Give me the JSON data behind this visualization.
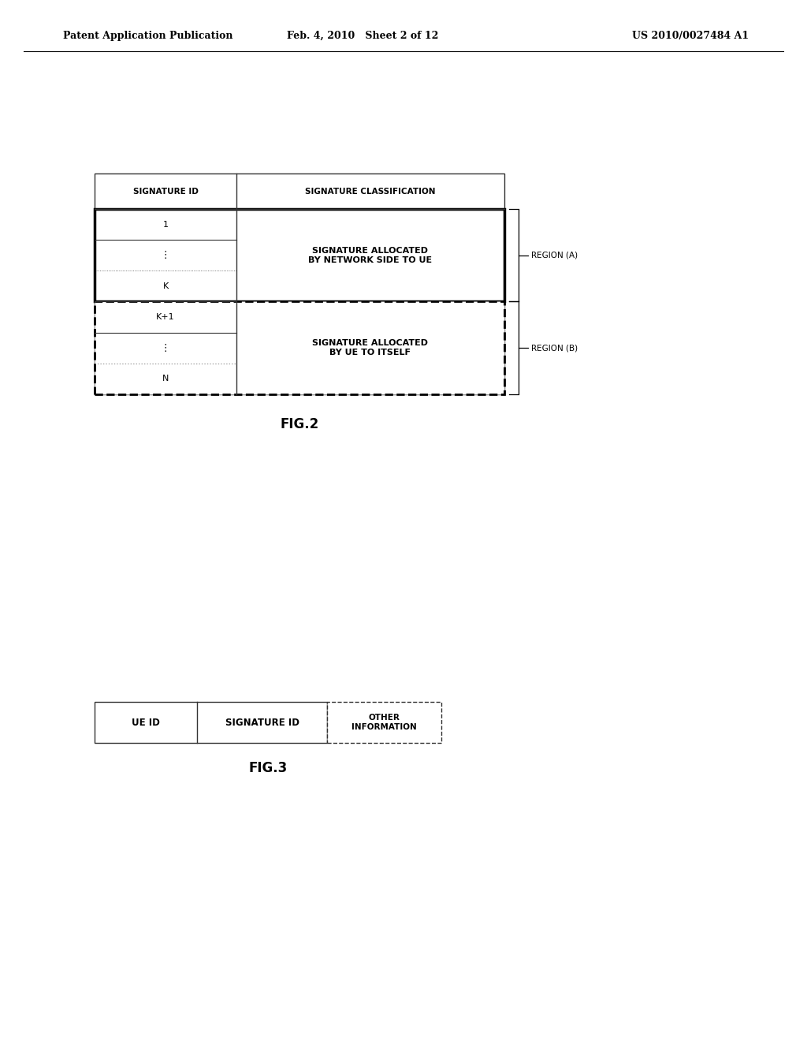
{
  "bg_color": "#ffffff",
  "header_text": {
    "left": "Patent Application Publication",
    "center": "Feb. 4, 2010   Sheet 2 of 12",
    "right": "US 2010/0027484 A1"
  },
  "fig2": {
    "title": "FIG.2",
    "header_label_left": "SIGNATURE ID",
    "header_label_right": "SIGNATURE CLASSIFICATION",
    "rows_a": [
      "1",
      "⋮",
      "K"
    ],
    "rows_b": [
      "K+1",
      "⋮",
      "N"
    ],
    "text_a": "SIGNATURE ALLOCATED\nBY NETWORK SIDE TO UE",
    "text_b": "SIGNATURE ALLOCATED\nBY UE TO ITSELF",
    "region_a": "REGION (A)",
    "region_b": "REGION (B)"
  },
  "fig3": {
    "title": "FIG.3",
    "col1_label": "UE ID",
    "col2_label": "SIGNATURE ID",
    "col3_label": "OTHER\nINFORMATION"
  }
}
